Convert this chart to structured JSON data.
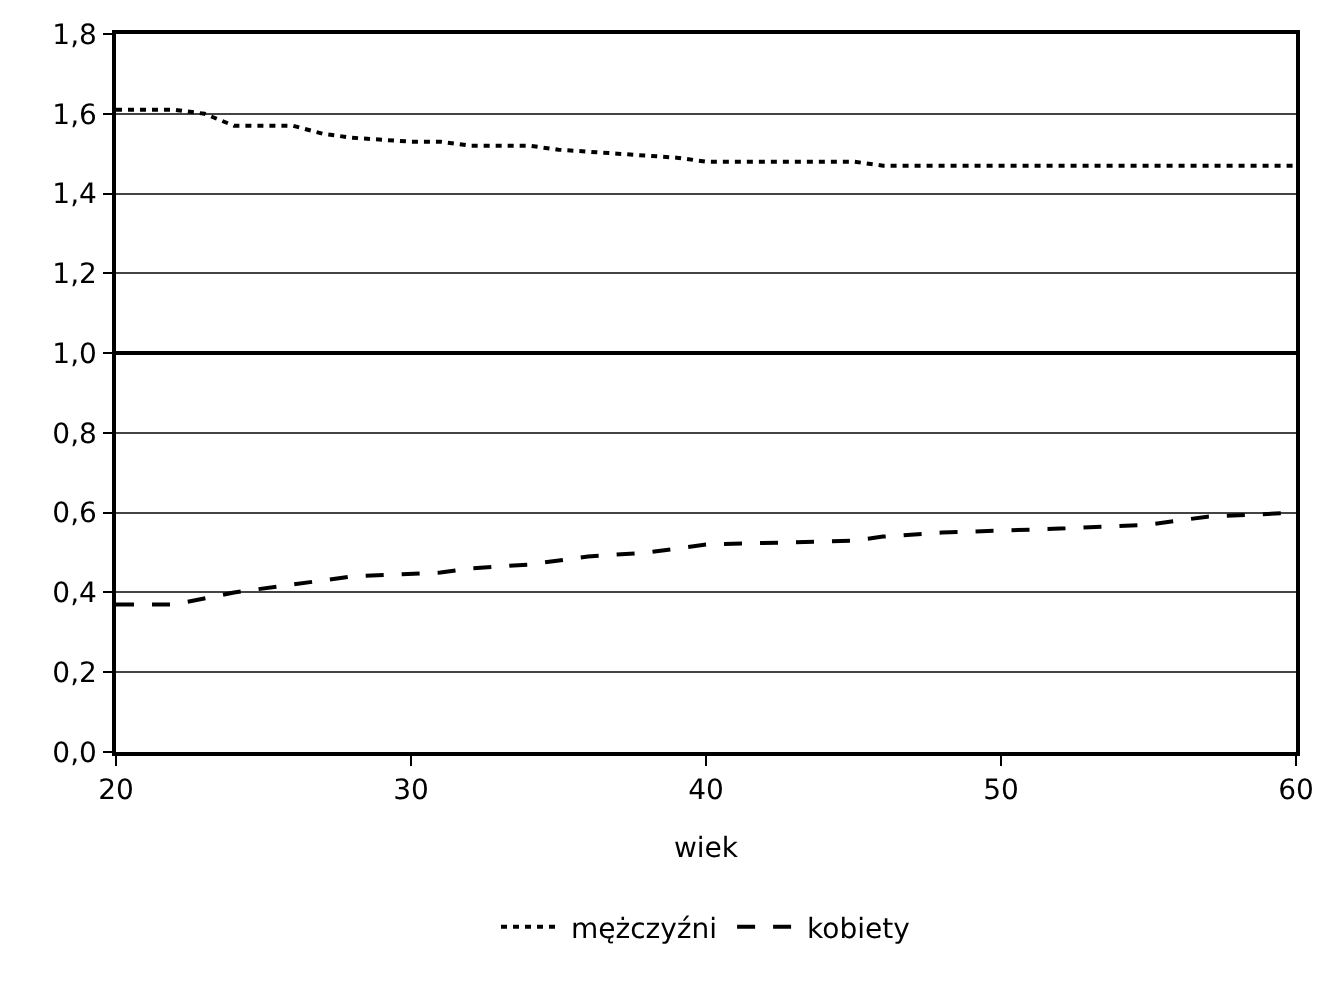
{
  "chart_data": {
    "type": "line",
    "xlabel": "wiek",
    "xlim": [
      20,
      60
    ],
    "xticks": [
      20,
      30,
      40,
      50,
      60
    ],
    "ylim": [
      0,
      1.8
    ],
    "yticks": [
      {
        "value": 0,
        "label": "0,0"
      },
      {
        "value": 0.2,
        "label": "0,2"
      },
      {
        "value": 0.4,
        "label": "0,4"
      },
      {
        "value": 0.6,
        "label": "0,6"
      },
      {
        "value": 0.8,
        "label": "0,8"
      },
      {
        "value": 1,
        "label": "1,0"
      },
      {
        "value": 1.2,
        "label": "1,2"
      },
      {
        "value": 1.4,
        "label": "1,4"
      },
      {
        "value": 1.6,
        "label": "1,6"
      },
      {
        "value": 1.8,
        "label": "1,8"
      }
    ],
    "grid": "y",
    "legend": "bottom",
    "marker": "none",
    "ref_lines": [
      {
        "axis": "y",
        "value": 1,
        "color": "#000000",
        "line_style": "solid"
      }
    ],
    "series": [
      {
        "name": "mężczyźni",
        "color": "#000000",
        "line_style": "dotted",
        "x": [
          20,
          22,
          23,
          24,
          26,
          27,
          28,
          30,
          31,
          32,
          34,
          35,
          37,
          39,
          40,
          45,
          46,
          60
        ],
        "values": [
          1.61,
          1.61,
          1.6,
          1.57,
          1.57,
          1.55,
          1.54,
          1.53,
          1.53,
          1.52,
          1.52,
          1.51,
          1.5,
          1.49,
          1.48,
          1.48,
          1.47,
          1.47
        ]
      },
      {
        "name": "kobiety",
        "color": "#000000",
        "line_style": "dashed",
        "x": [
          20,
          22,
          24,
          26,
          28,
          31,
          32,
          34,
          36,
          38,
          40,
          45,
          46,
          48,
          52,
          55,
          57,
          60
        ],
        "values": [
          0.37,
          0.37,
          0.4,
          0.42,
          0.44,
          0.45,
          0.46,
          0.47,
          0.49,
          0.5,
          0.52,
          0.53,
          0.54,
          0.55,
          0.56,
          0.57,
          0.59,
          0.6
        ]
      }
    ]
  }
}
